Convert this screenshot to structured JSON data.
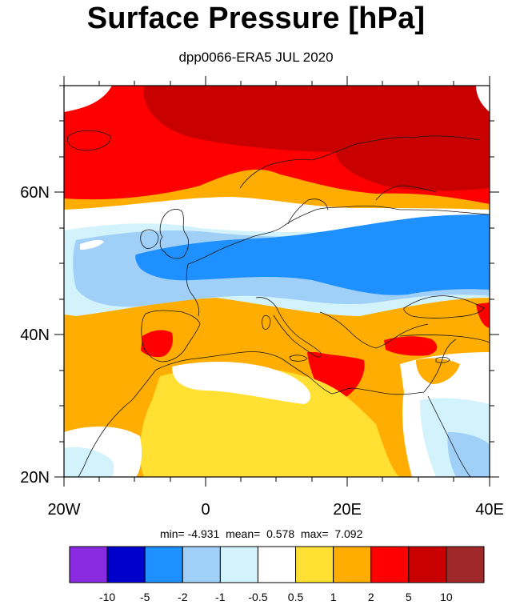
{
  "title": "Surface Pressure [hPa]",
  "subtitle": "dpp0066-ERA5 JUL 2020",
  "map": {
    "region": "Europe / North Africa",
    "lon_range": [
      -20,
      40
    ],
    "lat_range": [
      20,
      75
    ],
    "lat_ticks": [
      "60N",
      "40N",
      "20N"
    ],
    "lon_ticks": [
      "20W",
      "0",
      "20E",
      "40E"
    ]
  },
  "stats": {
    "min_label": "min=",
    "min": "-4.931",
    "mean_label": "mean=",
    "mean": "0.578",
    "max_label": "max=",
    "max": "7.092"
  },
  "colorbar": {
    "colors": [
      "#8a2be2",
      "#0000cd",
      "#1e90ff",
      "#a0cff8",
      "#d2f2fc",
      "#ffffff",
      "#ffe033",
      "#ffad00",
      "#ff0000",
      "#c80000",
      "#a02828"
    ],
    "labels": [
      "-10",
      "-5",
      "-2",
      "-1",
      "-0.5",
      "0.5",
      "1",
      "2",
      "5",
      "10"
    ]
  }
}
